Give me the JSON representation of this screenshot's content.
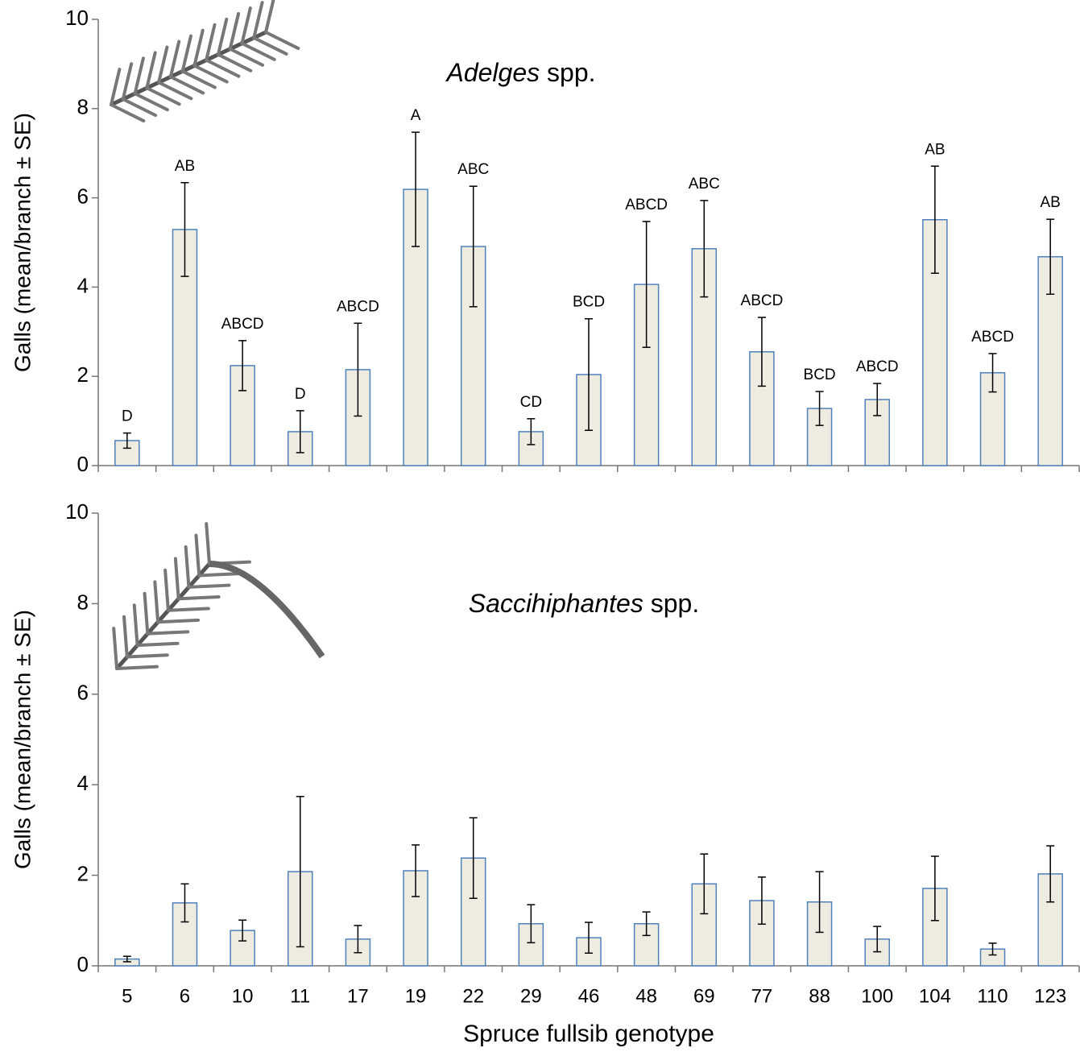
{
  "chart_data": [
    {
      "type": "bar",
      "title": "Adelges spp.",
      "y_label": "Galls (mean/branch ± SE)",
      "categories": [
        null,
        null,
        null,
        null,
        null,
        null,
        null,
        null,
        null,
        null,
        null,
        null,
        null,
        null,
        null,
        null,
        null
      ],
      "values": [
        0.56,
        5.29,
        2.24,
        0.76,
        2.15,
        6.19,
        4.91,
        0.76,
        2.04,
        4.06,
        4.86,
        2.55,
        1.28,
        1.48,
        5.51,
        2.08,
        4.68
      ],
      "errors": [
        0.17,
        1.05,
        0.56,
        0.47,
        1.04,
        1.28,
        1.35,
        0.29,
        1.25,
        1.41,
        1.08,
        0.77,
        0.38,
        0.36,
        1.2,
        0.43,
        0.84
      ],
      "annotations": [
        "D",
        "AB",
        "ABCD",
        "D",
        "ABCD",
        "A",
        "ABC",
        "CD",
        "BCD",
        "ABCD",
        "ABC",
        "ABCD",
        "BCD",
        "ABCD",
        "AB",
        "ABCD",
        "AB"
      ],
      "color": "#eeebe0",
      "edge_color": "#4f81bd",
      "ylim": [
        0,
        10
      ],
      "yticks": [
        0,
        2,
        4,
        6,
        8,
        10
      ]
    },
    {
      "type": "bar",
      "title": "Saccihiphantes spp.",
      "y_label": "Galls (mean/branch ± SE)",
      "x_label": "Spruce fullsib genotype",
      "categories": [
        "5",
        "6",
        "10",
        "11",
        "17",
        "19",
        "22",
        "29",
        "46",
        "48",
        "69",
        "77",
        "88",
        "100",
        "104",
        "110",
        "123"
      ],
      "values": [
        0.15,
        1.39,
        0.78,
        2.08,
        0.59,
        2.1,
        2.38,
        0.93,
        0.62,
        0.93,
        1.81,
        1.44,
        1.41,
        0.59,
        1.71,
        0.37,
        2.03
      ],
      "errors": [
        0.06,
        0.42,
        0.23,
        1.66,
        0.3,
        0.57,
        0.89,
        0.42,
        0.34,
        0.26,
        0.66,
        0.52,
        0.67,
        0.28,
        0.71,
        0.13,
        0.62
      ],
      "color": "#eeebe0",
      "edge_color": "#4f81bd",
      "ylim": [
        0,
        10
      ],
      "yticks": [
        0,
        2,
        4,
        6,
        8,
        10
      ]
    }
  ]
}
